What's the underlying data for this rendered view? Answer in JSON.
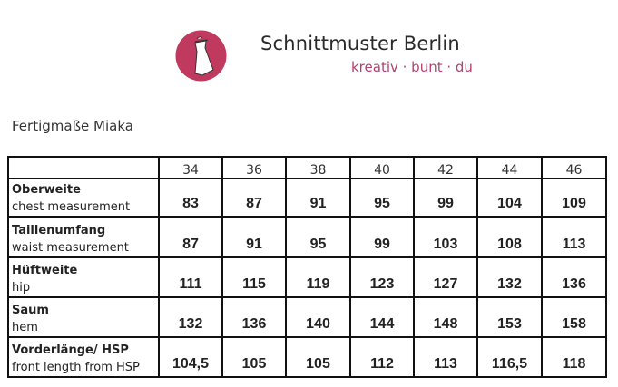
{
  "brand": {
    "name": "Schnittmuster Berlin",
    "tagline": "kreativ · bunt · du",
    "color": "#c0395e",
    "icon": "dress-on-hanger-icon"
  },
  "title": "Fertigmaße Miaka",
  "table": {
    "sizes": [
      "34",
      "36",
      "38",
      "40",
      "42",
      "44",
      "46"
    ],
    "rows": [
      {
        "de": "Oberweite",
        "en": "chest measurement",
        "values": [
          "83",
          "87",
          "91",
          "95",
          "99",
          "104",
          "109"
        ]
      },
      {
        "de": "Taillenumfang",
        "en": "waist measurement",
        "values": [
          "87",
          "91",
          "95",
          "99",
          "103",
          "108",
          "113"
        ]
      },
      {
        "de": "Hüftweite",
        "en": "hip",
        "values": [
          "111",
          "115",
          "119",
          "123",
          "127",
          "132",
          "136"
        ]
      },
      {
        "de": "Saum",
        "en": "hem",
        "values": [
          "132",
          "136",
          "140",
          "144",
          "148",
          "153",
          "158"
        ]
      },
      {
        "de": "Vorderlänge/ HSP",
        "en": "front length from HSP",
        "values": [
          "104,5",
          "105",
          "105",
          "112",
          "113",
          "116,5",
          "118"
        ]
      }
    ]
  }
}
